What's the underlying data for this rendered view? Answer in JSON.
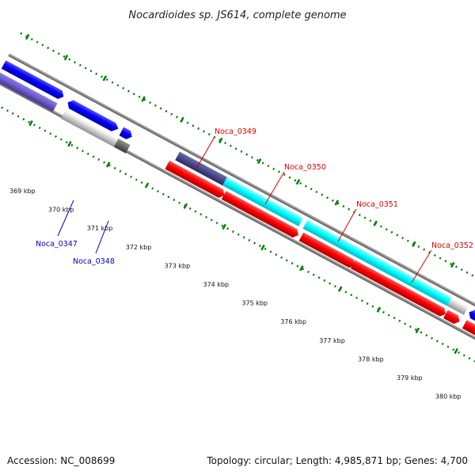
{
  "title": "Nocardioides sp. JS614, complete genome",
  "footer": {
    "accession": "Accession: NC_008699",
    "summary": "Topology: circular; Length: 4,985,871 bp; Genes: 4,700"
  },
  "ruler": {
    "labels": [
      "369 kbp",
      "370 kbp",
      "371 kbp",
      "372 kbp",
      "373 kbp",
      "374 kbp",
      "375 kbp",
      "376 kbp",
      "377 kbp",
      "378 kbp",
      "379 kbp",
      "380 kbp"
    ]
  },
  "genes": [
    {
      "id": "Noca_0347",
      "color": "#0000cc"
    },
    {
      "id": "Noca_0348",
      "color": "#0000cc"
    },
    {
      "id": "Noca_0349",
      "color": "#dd0000"
    },
    {
      "id": "Noca_0350",
      "color": "#dd0000"
    },
    {
      "id": "Noca_0351",
      "color": "#dd0000"
    },
    {
      "id": "Noca_0352",
      "color": "#dd0000"
    }
  ],
  "colors": {
    "forward_cds": "#ff0000",
    "reverse_cds": "#0000ff",
    "rna_blue": "#6a5acd",
    "highlight_cyan": "#00ffff",
    "gray_cds": "#c0c0c0",
    "tick_green": "#008000",
    "backbone": "#888888"
  }
}
